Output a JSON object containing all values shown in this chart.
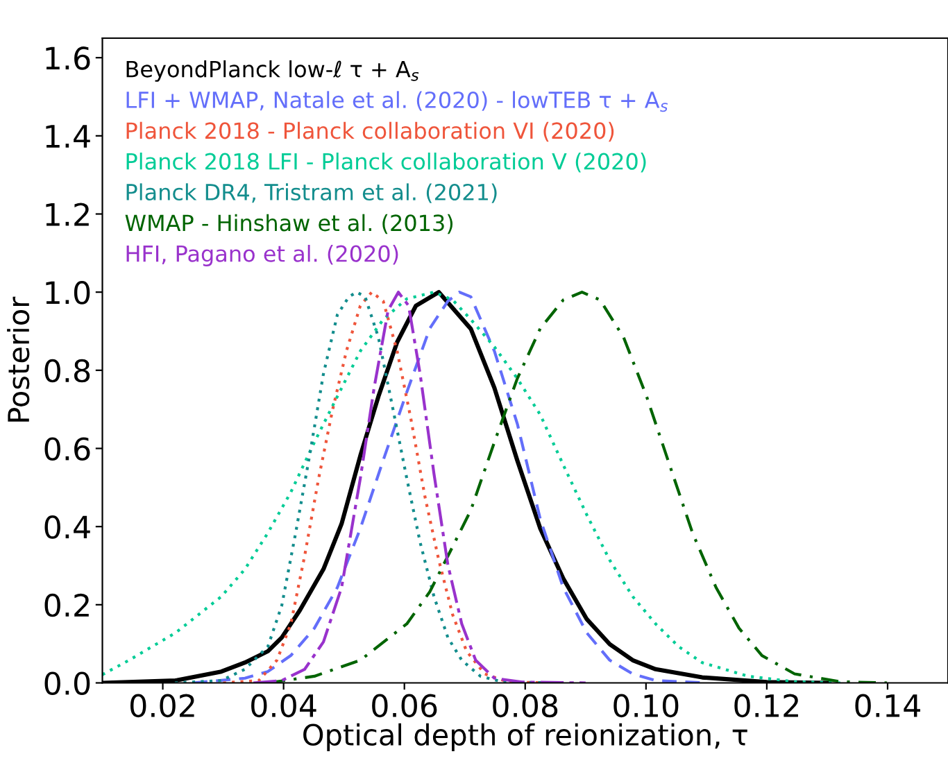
{
  "chart_data": {
    "type": "line",
    "xlabel": "Optical depth of reionization, τ",
    "ylabel": "Posterior",
    "xlim": [
      0.01,
      0.15
    ],
    "xticks": [
      {
        "value": 0.02,
        "label": "0.02"
      },
      {
        "value": 0.04,
        "label": "0.04"
      },
      {
        "value": 0.06,
        "label": "0.06"
      },
      {
        "value": 0.08,
        "label": "0.08"
      },
      {
        "value": 0.1,
        "label": "0.10"
      },
      {
        "value": 0.12,
        "label": "0.12"
      },
      {
        "value": 0.14,
        "label": "0.14"
      }
    ],
    "ylim": [
      0,
      1.65
    ],
    "yticks": [
      {
        "value": 0,
        "label": "0.0"
      },
      {
        "value": 0.2,
        "label": "0.2"
      },
      {
        "value": 0.4,
        "label": "0.4"
      },
      {
        "value": 0.6,
        "label": "0.6"
      },
      {
        "value": 0.8,
        "label": "0.8"
      },
      {
        "value": 1,
        "label": "1.0"
      },
      {
        "value": 1.2,
        "label": "1.2"
      },
      {
        "value": 1.4,
        "label": "1.4"
      },
      {
        "value": 1.6,
        "label": "1.6"
      }
    ],
    "grid": false,
    "legend": "top left",
    "marker": "none",
    "series": [
      {
        "name": "BeyondPlanck low-ℓ τ + A$_{s}$",
        "color": "#000000",
        "line_style": "solid",
        "x": [
          0.01,
          0.0221,
          0.0297,
          0.0336,
          0.0374,
          0.0397,
          0.0427,
          0.0466,
          0.0496,
          0.0527,
          0.0557,
          0.0588,
          0.0619,
          0.0657,
          0.071,
          0.0749,
          0.0787,
          0.0825,
          0.0863,
          0.0902,
          0.094,
          0.0978,
          0.1016,
          0.1093,
          0.12,
          0.13
        ],
        "values": [
          0,
          0.006,
          0.029,
          0.052,
          0.081,
          0.116,
          0.186,
          0.291,
          0.407,
          0.581,
          0.733,
          0.872,
          0.965,
          1.0,
          0.906,
          0.755,
          0.569,
          0.395,
          0.267,
          0.163,
          0.099,
          0.058,
          0.035,
          0.014,
          0.002,
          0
        ]
      },
      {
        "name": "LFI + WMAP, Natale et al. (2020) - lowTEB τ + A$_{s}$",
        "color": "#636efa",
        "line_style": "dashed",
        "x": [
          0.025,
          0.0336,
          0.0374,
          0.0412,
          0.0451,
          0.0489,
          0.0527,
          0.0565,
          0.0604,
          0.0642,
          0.0672,
          0.0691,
          0.071,
          0.0749,
          0.0787,
          0.0825,
          0.0863,
          0.0902,
          0.094,
          0.0978,
          0.1016,
          0.11
        ],
        "values": [
          0,
          0.012,
          0.029,
          0.07,
          0.14,
          0.244,
          0.395,
          0.57,
          0.744,
          0.907,
          0.977,
          1.0,
          0.988,
          0.849,
          0.663,
          0.419,
          0.244,
          0.128,
          0.058,
          0.023,
          0.006,
          0
        ]
      },
      {
        "name": "Planck 2018 - Planck collaboration VI (2020)",
        "color": "#ef553b",
        "line_style": "dotted",
        "x": [
          0.03,
          0.0359,
          0.0389,
          0.0412,
          0.0435,
          0.0458,
          0.0481,
          0.0504,
          0.0527,
          0.0546,
          0.0565,
          0.0588,
          0.0611,
          0.0634,
          0.0657,
          0.068,
          0.0703,
          0.0733,
          0.0772,
          0.085
        ],
        "values": [
          0,
          0.006,
          0.058,
          0.151,
          0.326,
          0.523,
          0.698,
          0.849,
          0.965,
          1.0,
          0.977,
          0.849,
          0.674,
          0.477,
          0.314,
          0.174,
          0.081,
          0.023,
          0.002,
          0
        ]
      },
      {
        "name": "Planck 2018 LFI - Planck collaboration V (2020)",
        "color": "#00cc96",
        "line_style": "dotted",
        "x": [
          0.01,
          0.0144,
          0.0221,
          0.0297,
          0.0336,
          0.0374,
          0.0412,
          0.0451,
          0.0489,
          0.0527,
          0.0565,
          0.0604,
          0.0649,
          0.068,
          0.071,
          0.0749,
          0.0787,
          0.0825,
          0.0863,
          0.0902,
          0.094,
          0.0978,
          0.1016,
          0.1054,
          0.1093,
          0.1169,
          0.1246,
          0.1322
        ],
        "values": [
          0.021,
          0.058,
          0.128,
          0.221,
          0.291,
          0.384,
          0.488,
          0.616,
          0.733,
          0.849,
          0.93,
          0.983,
          1.0,
          0.98,
          0.93,
          0.86,
          0.779,
          0.686,
          0.558,
          0.43,
          0.314,
          0.221,
          0.151,
          0.093,
          0.052,
          0.017,
          0.003,
          0
        ]
      },
      {
        "name": "Planck DR4, Tristram et al. (2021)",
        "color": "#138d8d",
        "line_style": "dotted",
        "x": [
          0.022,
          0.0297,
          0.0336,
          0.0374,
          0.0397,
          0.042,
          0.0443,
          0.0466,
          0.0489,
          0.0508,
          0.0521,
          0.0535,
          0.0557,
          0.058,
          0.0604,
          0.0626,
          0.0649,
          0.0672,
          0.0695,
          0.0726,
          0.0764,
          0.085
        ],
        "values": [
          0,
          0.006,
          0.035,
          0.093,
          0.198,
          0.384,
          0.581,
          0.791,
          0.942,
          0.988,
          1.0,
          0.988,
          0.884,
          0.709,
          0.523,
          0.36,
          0.221,
          0.116,
          0.058,
          0.017,
          0.002,
          0
        ]
      },
      {
        "name": "WMAP - Hinshaw et al. (2013)",
        "color": "#006400",
        "line_style": "dashdot",
        "x": [
          0.0374,
          0.0451,
          0.0527,
          0.0604,
          0.0642,
          0.068,
          0.071,
          0.0749,
          0.0787,
          0.0825,
          0.0863,
          0.0894,
          0.0924,
          0.0963,
          0.1001,
          0.1039,
          0.1077,
          0.1116,
          0.1154,
          0.1192,
          0.1246,
          0.1322,
          0.1399
        ],
        "values": [
          0,
          0.017,
          0.058,
          0.151,
          0.233,
          0.349,
          0.442,
          0.616,
          0.779,
          0.907,
          0.98,
          1.0,
          0.98,
          0.884,
          0.733,
          0.558,
          0.384,
          0.244,
          0.14,
          0.07,
          0.023,
          0.003,
          0
        ]
      },
      {
        "name": "HFI, Pagano et al. (2020)",
        "color": "#9932cc",
        "line_style": "longdashdot",
        "x": [
          0.035,
          0.0397,
          0.0435,
          0.0466,
          0.0496,
          0.0527,
          0.055,
          0.0573,
          0.059,
          0.0607,
          0.0626,
          0.0649,
          0.0672,
          0.0695,
          0.0718,
          0.0749,
          0.0795,
          0.09
        ],
        "values": [
          0,
          0.006,
          0.035,
          0.105,
          0.244,
          0.523,
          0.756,
          0.953,
          1.0,
          0.965,
          0.791,
          0.535,
          0.302,
          0.151,
          0.058,
          0.012,
          0.002,
          0
        ]
      }
    ]
  }
}
